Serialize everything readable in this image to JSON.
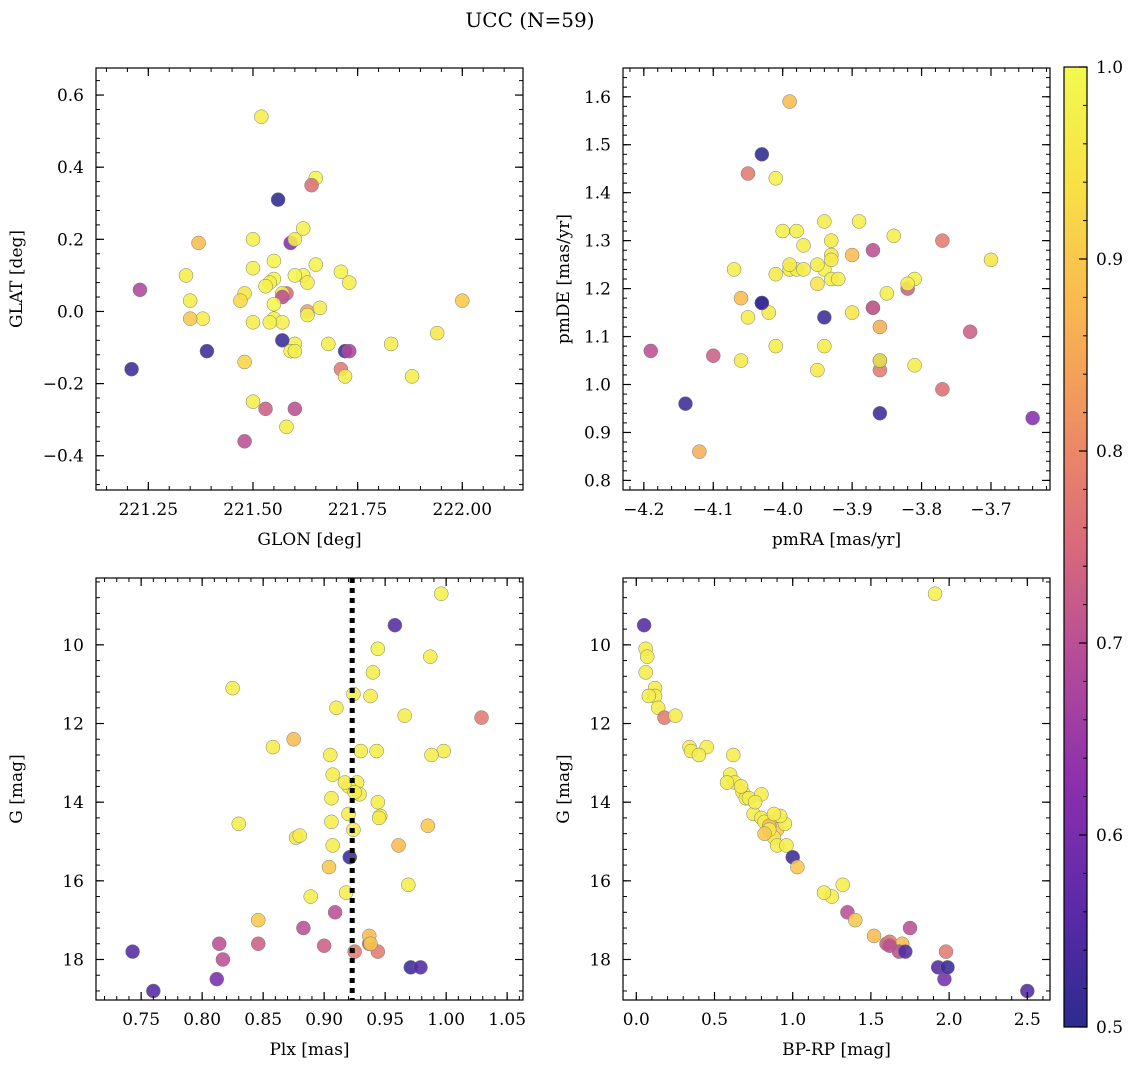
{
  "figure": {
    "title": "UCC (N=59)"
  },
  "chart_data": [
    {
      "type": "scatter",
      "xlabel": "GLON [deg]",
      "ylabel": "GLAT [deg]",
      "xlim": [
        221.125,
        222.145
      ],
      "ylim": [
        -0.495,
        0.675
      ],
      "xticks": [
        221.25,
        221.5,
        221.75,
        222.0
      ],
      "xtick_labels": [
        "221.25",
        "221.50",
        "221.75",
        "222.00"
      ],
      "yticks": [
        -0.4,
        -0.2,
        0.0,
        0.2,
        0.4,
        0.6
      ],
      "ytick_labels": [
        "−0.4",
        "−0.2",
        "0.0",
        "0.2",
        "0.4",
        "0.6"
      ],
      "x": [
        221.52,
        221.65,
        221.56,
        221.64,
        221.59,
        221.37,
        221.6,
        221.5,
        221.55,
        221.62,
        221.34,
        221.65,
        221.71,
        221.62,
        221.63,
        221.55,
        221.54,
        221.23,
        221.5,
        221.58,
        221.35,
        221.6,
        221.57,
        221.57,
        221.48,
        221.47,
        221.53,
        221.55,
        221.38,
        221.35,
        221.63,
        221.66,
        221.73,
        221.55,
        221.57,
        221.6,
        221.5,
        221.54,
        221.63,
        221.57,
        221.68,
        221.59,
        221.83,
        221.94,
        221.6,
        221.39,
        221.72,
        221.73,
        221.48,
        221.71,
        221.72,
        221.88,
        221.6,
        221.5,
        221.21,
        221.53,
        221.48,
        221.58,
        222.0
      ],
      "y": [
        0.54,
        0.37,
        0.31,
        0.35,
        0.19,
        0.19,
        0.2,
        0.2,
        0.14,
        0.23,
        0.1,
        0.13,
        0.11,
        0.1,
        0.08,
        0.09,
        0.08,
        0.06,
        0.12,
        0.05,
        0.03,
        0.1,
        0.05,
        0.04,
        0.05,
        0.03,
        0.07,
        0.02,
        -0.02,
        -0.02,
        0.0,
        0.01,
        0.08,
        -0.02,
        -0.03,
        -0.09,
        -0.03,
        -0.03,
        -0.01,
        -0.08,
        -0.09,
        -0.11,
        -0.09,
        -0.06,
        -0.11,
        -0.11,
        -0.11,
        -0.11,
        -0.14,
        -0.16,
        -0.18,
        -0.18,
        -0.27,
        -0.25,
        -0.16,
        -0.27,
        -0.36,
        -0.32,
        0.03
      ],
      "c": [
        0.97,
        0.99,
        0.5,
        0.76,
        0.62,
        0.88,
        0.97,
        0.98,
        0.99,
        0.98,
        0.97,
        0.98,
        0.98,
        0.98,
        0.97,
        0.99,
        0.97,
        0.68,
        0.98,
        0.75,
        0.97,
        0.99,
        0.96,
        0.7,
        0.95,
        0.93,
        0.98,
        0.99,
        0.97,
        0.9,
        0.84,
        0.97,
        0.97,
        0.98,
        0.98,
        0.98,
        0.97,
        0.98,
        0.98,
        0.52,
        0.97,
        0.98,
        0.97,
        0.96,
        0.97,
        0.52,
        0.53,
        0.68,
        0.92,
        0.78,
        0.97,
        0.97,
        0.7,
        0.97,
        0.52,
        0.73,
        0.7,
        0.97,
        0.9
      ]
    },
    {
      "type": "scatter",
      "xlabel": "pmRA [mas/yr]",
      "ylabel": "pmDE [mas/yr]",
      "xlim": [
        -4.23,
        -3.615
      ],
      "ylim": [
        0.78,
        1.66
      ],
      "xticks": [
        -4.2,
        -4.1,
        -4.0,
        -3.9,
        -3.8,
        -3.7
      ],
      "xtick_labels": [
        "−4.2",
        "−4.1",
        "−4.0",
        "−3.9",
        "−3.8",
        "−3.7"
      ],
      "yticks": [
        0.8,
        0.9,
        1.0,
        1.1,
        1.2,
        1.3,
        1.4,
        1.5,
        1.6
      ],
      "ytick_labels": [
        "0.8",
        "0.9",
        "1.0",
        "1.1",
        "1.2",
        "1.3",
        "1.4",
        "1.5",
        "1.6"
      ],
      "x": [
        -3.99,
        -4.03,
        -4.05,
        -4.01,
        -3.94,
        -3.89,
        -3.77,
        -4.0,
        -3.98,
        -3.93,
        -3.87,
        -3.84,
        -3.93,
        -3.99,
        -3.94,
        -3.97,
        -4.07,
        -3.99,
        -3.95,
        -4.01,
        -3.93,
        -3.93,
        -3.92,
        -3.9,
        -3.82,
        -3.81,
        -4.06,
        -4.03,
        -3.85,
        -3.87,
        -3.95,
        -3.98,
        -4.02,
        -4.05,
        -3.97,
        -3.99,
        -3.9,
        -3.86,
        -4.01,
        -3.94,
        -3.94,
        -4.1,
        -3.73,
        -4.06,
        -3.81,
        -3.7,
        -3.86,
        -3.95,
        -3.86,
        -3.77,
        -3.64,
        -3.86,
        -4.19,
        -4.14,
        -4.12,
        -3.87,
        -3.82,
        -3.86,
        -4.03
      ],
      "y": [
        1.59,
        1.48,
        1.44,
        1.43,
        1.34,
        1.34,
        1.3,
        1.32,
        1.32,
        1.3,
        1.28,
        1.31,
        1.27,
        1.24,
        1.24,
        1.29,
        1.24,
        1.24,
        1.25,
        1.23,
        1.22,
        1.26,
        1.22,
        1.27,
        1.2,
        1.22,
        1.18,
        1.17,
        1.19,
        1.16,
        1.21,
        1.24,
        1.15,
        1.14,
        1.24,
        1.25,
        1.15,
        1.12,
        1.08,
        1.08,
        1.14,
        1.06,
        1.11,
        1.05,
        1.04,
        1.26,
        1.03,
        1.03,
        1.05,
        0.99,
        0.93,
        0.94,
        1.07,
        0.96,
        0.86,
        1.16,
        1.21,
        1.05,
        1.17
      ],
      "c": [
        0.88,
        0.5,
        0.78,
        0.98,
        0.97,
        0.97,
        0.78,
        0.97,
        0.97,
        0.96,
        0.7,
        0.97,
        0.96,
        0.97,
        0.98,
        0.97,
        0.97,
        0.98,
        0.97,
        0.96,
        0.97,
        0.96,
        0.97,
        0.88,
        0.73,
        0.98,
        0.88,
        0.5,
        0.97,
        0.97,
        0.95,
        0.97,
        0.96,
        0.97,
        0.97,
        0.96,
        0.95,
        0.86,
        0.97,
        0.97,
        0.52,
        0.73,
        0.73,
        0.96,
        0.97,
        0.95,
        0.78,
        0.96,
        0.52,
        0.76,
        0.62,
        0.52,
        0.7,
        0.52,
        0.86,
        0.7,
        0.97,
        0.97,
        0.52
      ]
    },
    {
      "type": "scatter",
      "xlabel": "Plx [mas]",
      "ylabel": "G [mag]",
      "xlim": [
        0.713,
        1.063
      ],
      "ylim": [
        19.03,
        8.3
      ],
      "y_inverted": true,
      "xticks": [
        0.75,
        0.8,
        0.85,
        0.9,
        0.95,
        1.0,
        1.05
      ],
      "xtick_labels": [
        "0.75",
        "0.80",
        "0.85",
        "0.90",
        "0.95",
        "1.00",
        "1.05"
      ],
      "yticks": [
        10,
        12,
        14,
        16,
        18
      ],
      "ytick_labels": [
        "10",
        "12",
        "14",
        "16",
        "18"
      ],
      "vline": 0.923,
      "x": [
        0.996,
        0.958,
        0.944,
        0.987,
        0.94,
        0.825,
        0.966,
        0.924,
        0.91,
        0.938,
        1.029,
        0.943,
        0.858,
        0.875,
        0.998,
        0.988,
        0.93,
        0.927,
        0.92,
        0.917,
        0.905,
        0.907,
        0.929,
        0.944,
        0.92,
        0.906,
        0.946,
        0.945,
        0.906,
        0.83,
        0.985,
        0.877,
        0.88,
        0.924,
        0.961,
        0.907,
        0.969,
        0.921,
        0.889,
        0.846,
        0.904,
        0.883,
        0.937,
        0.817,
        0.909,
        0.814,
        0.846,
        0.918,
        0.937,
        0.9,
        0.925,
        0.944,
        0.938,
        0.971,
        0.979,
        0.743,
        0.812,
        0.76,
        0.925
      ],
      "y": [
        8.7,
        9.5,
        10.1,
        10.3,
        10.7,
        11.1,
        11.8,
        11.25,
        11.6,
        11.3,
        11.85,
        12.7,
        12.6,
        12.4,
        12.7,
        12.8,
        12.7,
        13.5,
        13.6,
        13.5,
        12.8,
        13.3,
        13.8,
        14.0,
        14.3,
        13.9,
        14.35,
        14.4,
        14.5,
        14.55,
        14.6,
        14.9,
        14.85,
        14.7,
        15.1,
        15.1,
        16.1,
        15.4,
        16.4,
        17.0,
        15.65,
        17.2,
        17.6,
        18.0,
        16.8,
        17.6,
        17.6,
        16.3,
        17.4,
        17.65,
        17.8,
        17.8,
        17.6,
        18.2,
        18.2,
        17.8,
        18.5,
        18.8,
        13.75
      ],
      "c": [
        0.98,
        0.55,
        0.98,
        0.97,
        0.97,
        0.97,
        0.97,
        0.98,
        0.97,
        0.97,
        0.78,
        0.97,
        0.97,
        0.88,
        0.97,
        0.97,
        0.97,
        0.97,
        0.97,
        0.97,
        0.97,
        0.97,
        0.97,
        0.97,
        0.97,
        0.97,
        0.97,
        0.97,
        0.97,
        0.97,
        0.9,
        0.95,
        0.97,
        0.97,
        0.88,
        0.97,
        0.97,
        0.52,
        0.97,
        0.9,
        0.9,
        0.7,
        0.7,
        0.7,
        0.7,
        0.7,
        0.73,
        0.97,
        0.88,
        0.73,
        0.78,
        0.78,
        0.9,
        0.52,
        0.55,
        0.55,
        0.6,
        0.55,
        0.97
      ]
    },
    {
      "type": "scatter",
      "xlabel": "BP-RP [mag]",
      "ylabel": "G [mag]",
      "xlim": [
        -0.085,
        2.645
      ],
      "ylim": [
        19.03,
        8.3
      ],
      "y_inverted": true,
      "xticks": [
        0.0,
        0.5,
        1.0,
        1.5,
        2.0,
        2.5
      ],
      "xtick_labels": [
        "0.0",
        "0.5",
        "1.0",
        "1.5",
        "2.0",
        "2.5"
      ],
      "yticks": [
        10,
        12,
        14,
        16,
        18
      ],
      "ytick_labels": [
        "10",
        "12",
        "14",
        "16",
        "18"
      ],
      "x": [
        1.91,
        0.05,
        0.06,
        0.07,
        0.06,
        0.12,
        0.12,
        0.14,
        0.18,
        0.25,
        0.34,
        0.35,
        0.45,
        0.4,
        0.62,
        0.6,
        0.63,
        0.68,
        0.7,
        0.72,
        0.75,
        0.8,
        0.85,
        0.8,
        0.82,
        0.9,
        0.88,
        0.95,
        0.92,
        0.85,
        0.9,
        0.96,
        1.0,
        1.03,
        1.32,
        1.25,
        1.35,
        1.4,
        1.52,
        1.6,
        1.62,
        1.7,
        1.75,
        1.68,
        1.72,
        1.98,
        1.93,
        1.97,
        1.99,
        2.5,
        0.67,
        1.2,
        0.85,
        0.76,
        0.58,
        0.82,
        1.62,
        0.08,
        0.88
      ],
      "y": [
        8.7,
        9.5,
        10.1,
        10.3,
        10.7,
        11.1,
        11.3,
        11.6,
        11.85,
        11.8,
        12.6,
        12.7,
        12.6,
        12.8,
        12.8,
        13.3,
        13.5,
        13.75,
        13.9,
        13.9,
        14.3,
        13.8,
        14.5,
        14.4,
        14.5,
        14.7,
        14.9,
        14.55,
        14.35,
        14.6,
        15.1,
        15.1,
        15.4,
        15.65,
        16.1,
        16.4,
        16.8,
        17.0,
        17.4,
        17.6,
        17.55,
        17.6,
        17.2,
        17.8,
        17.8,
        17.8,
        18.2,
        18.5,
        18.2,
        18.8,
        13.6,
        16.3,
        14.7,
        14.0,
        13.5,
        14.8,
        17.65,
        11.3,
        14.3
      ],
      "c": [
        0.98,
        0.55,
        0.97,
        0.97,
        0.97,
        0.97,
        0.97,
        0.97,
        0.78,
        0.97,
        0.97,
        0.97,
        0.97,
        0.97,
        0.97,
        0.97,
        0.97,
        0.97,
        0.97,
        0.97,
        0.97,
        0.97,
        0.97,
        0.97,
        0.97,
        0.9,
        0.95,
        0.97,
        0.97,
        0.88,
        0.97,
        0.97,
        0.52,
        0.9,
        0.97,
        0.97,
        0.7,
        0.9,
        0.88,
        0.73,
        0.78,
        0.88,
        0.7,
        0.7,
        0.55,
        0.78,
        0.55,
        0.6,
        0.52,
        0.55,
        0.97,
        0.97,
        0.97,
        0.97,
        0.97,
        0.9,
        0.7,
        0.97,
        0.97
      ]
    }
  ],
  "colorbar": {
    "min": 0.5,
    "max": 1.0,
    "ticks": [
      "0.5",
      "0.6",
      "0.7",
      "0.8",
      "0.9",
      "1.0"
    ],
    "colormap": "plasma (truncated)",
    "colormap_stops": [
      "#2c2b8f",
      "#5c2aa8",
      "#8a2fae",
      "#b34a9a",
      "#d8697c",
      "#ef8f62",
      "#f9b850",
      "#f8e046",
      "#f2f94e"
    ]
  }
}
